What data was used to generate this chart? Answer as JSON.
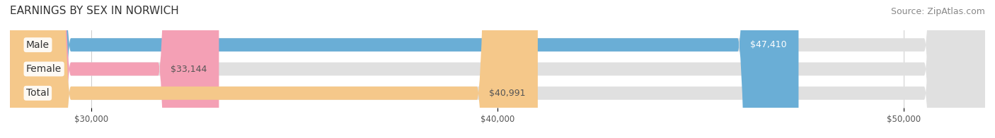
{
  "title": "EARNINGS BY SEX IN NORWICH",
  "source": "Source: ZipAtlas.com",
  "categories": [
    "Male",
    "Female",
    "Total"
  ],
  "values": [
    47410,
    33144,
    40991
  ],
  "bar_colors": [
    "#6aaed6",
    "#f4a0b5",
    "#f5c88a"
  ],
  "bar_bg_color": "#e0e0e0",
  "label_colors": [
    "#ffffff",
    "#555555",
    "#555555"
  ],
  "value_labels": [
    "$47,410",
    "$33,144",
    "$40,991"
  ],
  "x_min": 28000,
  "x_max": 52000,
  "x_ticks": [
    30000,
    40000,
    50000
  ],
  "x_tick_labels": [
    "$30,000",
    "$40,000",
    "$50,000"
  ],
  "bar_height": 0.55,
  "title_fontsize": 11,
  "source_fontsize": 9,
  "label_fontsize": 10,
  "value_fontsize": 9,
  "background_color": "#ffffff"
}
